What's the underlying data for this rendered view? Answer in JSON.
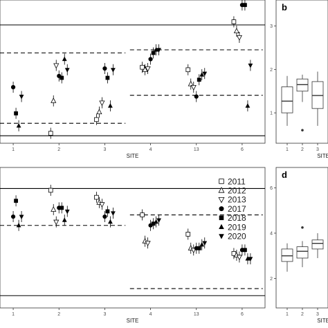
{
  "panels": {
    "top_left": {
      "type": "scatter",
      "xlabel": "SITE",
      "categories": [
        "1",
        "2",
        "3",
        "4",
        "13",
        "6"
      ],
      "ylim": [
        0.7,
        3.0
      ],
      "reference_lines": [
        {
          "style": "solid",
          "y": 2.6
        },
        {
          "style": "dashed",
          "y": 2.15,
          "span": [
            "1",
            "3"
          ]
        },
        {
          "style": "dashed",
          "y": 1.02,
          "span": [
            "1",
            "3"
          ]
        },
        {
          "style": "solid",
          "y": 0.82
        },
        {
          "style": "dashed",
          "y": 2.2,
          "span": [
            "4",
            "6"
          ]
        },
        {
          "style": "dashed",
          "y": 1.47,
          "span": [
            "4",
            "6"
          ]
        }
      ],
      "series": [
        {
          "name": "2011",
          "points": [
            [
              "2",
              0.86
            ],
            [
              "3",
              1.08
            ],
            [
              "4",
              1.92
            ],
            [
              "13",
              1.88
            ],
            [
              "6",
              2.65
            ]
          ]
        },
        {
          "name": "2012",
          "points": [
            [
              "2",
              1.38
            ],
            [
              "3",
              1.2
            ],
            [
              "4",
              1.88
            ],
            [
              "13",
              1.65
            ],
            [
              "6",
              2.5
            ]
          ]
        },
        {
          "name": "2013",
          "points": [
            [
              "2",
              1.95
            ],
            [
              "3",
              1.35
            ],
            [
              "4",
              1.9
            ],
            [
              "13",
              1.6
            ],
            [
              "6",
              2.4
            ]
          ]
        },
        {
          "name": "2017",
          "points": [
            [
              "1",
              1.6
            ],
            [
              "2",
              1.78
            ],
            [
              "3",
              1.9
            ],
            [
              "4",
              2.05
            ],
            [
              "13",
              1.45
            ],
            [
              "6",
              2.92
            ]
          ]
        },
        {
          "name": "2018",
          "points": [
            [
              "1",
              1.18
            ],
            [
              "2",
              1.75
            ],
            [
              "3",
              1.75
            ],
            [
              "4",
              2.15
            ],
            [
              "13",
              1.72
            ],
            [
              "6",
              2.92
            ]
          ]
        },
        {
          "name": "2019",
          "points": [
            [
              "1",
              0.98
            ],
            [
              "2",
              2.05
            ],
            [
              "3",
              1.3
            ],
            [
              "4",
              2.2
            ],
            [
              "13",
              1.8
            ],
            [
              "6",
              1.3
            ]
          ]
        },
        {
          "name": "2020",
          "points": [
            [
              "1",
              1.45
            ],
            [
              "2",
              1.88
            ],
            [
              "3",
              1.88
            ],
            [
              "4",
              2.2
            ],
            [
              "13",
              1.82
            ],
            [
              "6",
              1.95
            ]
          ]
        }
      ]
    },
    "bottom_left": {
      "type": "scatter",
      "xlabel": "SITE",
      "categories": [
        "1",
        "2",
        "3",
        "4",
        "13",
        "6"
      ],
      "ylim": [
        0.6,
        4.6
      ],
      "reference_lines": [
        {
          "style": "solid",
          "y": 4.0
        },
        {
          "style": "dashed",
          "y": 2.95,
          "span": [
            "1",
            "3"
          ]
        },
        {
          "style": "dashed",
          "y": 3.25,
          "span": [
            "4",
            "6"
          ]
        },
        {
          "style": "dashed",
          "y": 1.15,
          "span": [
            "4",
            "6"
          ]
        },
        {
          "style": "solid",
          "y": 0.95
        }
      ],
      "series": [
        {
          "name": "2011",
          "points": [
            [
              "2",
              3.95
            ],
            [
              "3",
              3.75
            ],
            [
              "4",
              3.25
            ],
            [
              "13",
              2.7
            ],
            [
              "6",
              2.15
            ]
          ]
        },
        {
          "name": "2012",
          "points": [
            [
              "2",
              3.4
            ],
            [
              "3",
              3.6
            ],
            [
              "4",
              2.5
            ],
            [
              "13",
              2.3
            ],
            [
              "6",
              2.1
            ]
          ]
        },
        {
          "name": "2013",
          "points": [
            [
              "2",
              3.05
            ],
            [
              "3",
              3.55
            ],
            [
              "4",
              2.45
            ],
            [
              "13",
              2.25
            ],
            [
              "6",
              2.05
            ]
          ]
        },
        {
          "name": "2017",
          "points": [
            [
              "1",
              3.2
            ],
            [
              "2",
              3.45
            ],
            [
              "3",
              3.2
            ],
            [
              "4",
              2.95
            ],
            [
              "13",
              2.3
            ],
            [
              "6",
              2.25
            ]
          ]
        },
        {
          "name": "2018",
          "points": [
            [
              "1",
              3.65
            ],
            [
              "2",
              3.45
            ],
            [
              "3",
              3.35
            ],
            [
              "4",
              3.0
            ],
            [
              "13",
              2.3
            ],
            [
              "6",
              2.25
            ]
          ]
        },
        {
          "name": "2019",
          "points": [
            [
              "1",
              2.95
            ],
            [
              "2",
              3.1
            ],
            [
              "3",
              3.05
            ],
            [
              "4",
              3.05
            ],
            [
              "13",
              2.4
            ],
            [
              "6",
              2.0
            ]
          ]
        },
        {
          "name": "2020",
          "points": [
            [
              "1",
              3.2
            ],
            [
              "2",
              3.35
            ],
            [
              "3",
              3.3
            ],
            [
              "4",
              3.1
            ],
            [
              "13",
              2.45
            ],
            [
              "6",
              2.0
            ]
          ]
        }
      ]
    },
    "top_right": {
      "label": "b",
      "type": "box",
      "xlabel": "SITE",
      "categories": [
        "1",
        "2",
        "3"
      ],
      "yticks": [
        1,
        2,
        3
      ],
      "ylim": [
        0.3,
        3.6
      ],
      "boxes": [
        {
          "min": 0.7,
          "q1": 1.0,
          "median": 1.27,
          "q3": 1.6,
          "max": 1.85,
          "outliers": []
        },
        {
          "min": 1.25,
          "q1": 1.5,
          "median": 1.65,
          "q3": 1.78,
          "max": 1.88,
          "outliers": [
            0.6
          ]
        },
        {
          "min": 0.7,
          "q1": 1.1,
          "median": 1.4,
          "q3": 1.72,
          "max": 1.95,
          "outliers": []
        }
      ]
    },
    "bottom_right": {
      "label": "d",
      "type": "box",
      "xlabel": "SITE",
      "categories": [
        "1",
        "2",
        "3"
      ],
      "yticks": [
        2,
        4,
        6
      ],
      "ylim": [
        0.7,
        6.9
      ],
      "boxes": [
        {
          "min": 2.3,
          "q1": 2.75,
          "median": 3.0,
          "q3": 3.3,
          "max": 3.55,
          "outliers": []
        },
        {
          "min": 2.5,
          "q1": 2.9,
          "median": 3.2,
          "q3": 3.4,
          "max": 3.65,
          "outliers": [
            4.25
          ]
        },
        {
          "min": 2.9,
          "q1": 3.3,
          "median": 3.55,
          "q3": 3.7,
          "max": 4.0,
          "outliers": []
        }
      ]
    }
  },
  "legend": {
    "placement": "top-right of lower-left panel",
    "entries": [
      {
        "label": "2011",
        "symbol": "square-open"
      },
      {
        "label": "2012",
        "symbol": "triangle-up-open"
      },
      {
        "label": "2013",
        "symbol": "triangle-down-open"
      },
      {
        "label": "2017",
        "symbol": "circle-filled"
      },
      {
        "label": "2018",
        "symbol": "square-filled"
      },
      {
        "label": "2019",
        "symbol": "triangle-up-filled"
      },
      {
        "label": "2020",
        "symbol": "triangle-down-filled"
      }
    ]
  }
}
